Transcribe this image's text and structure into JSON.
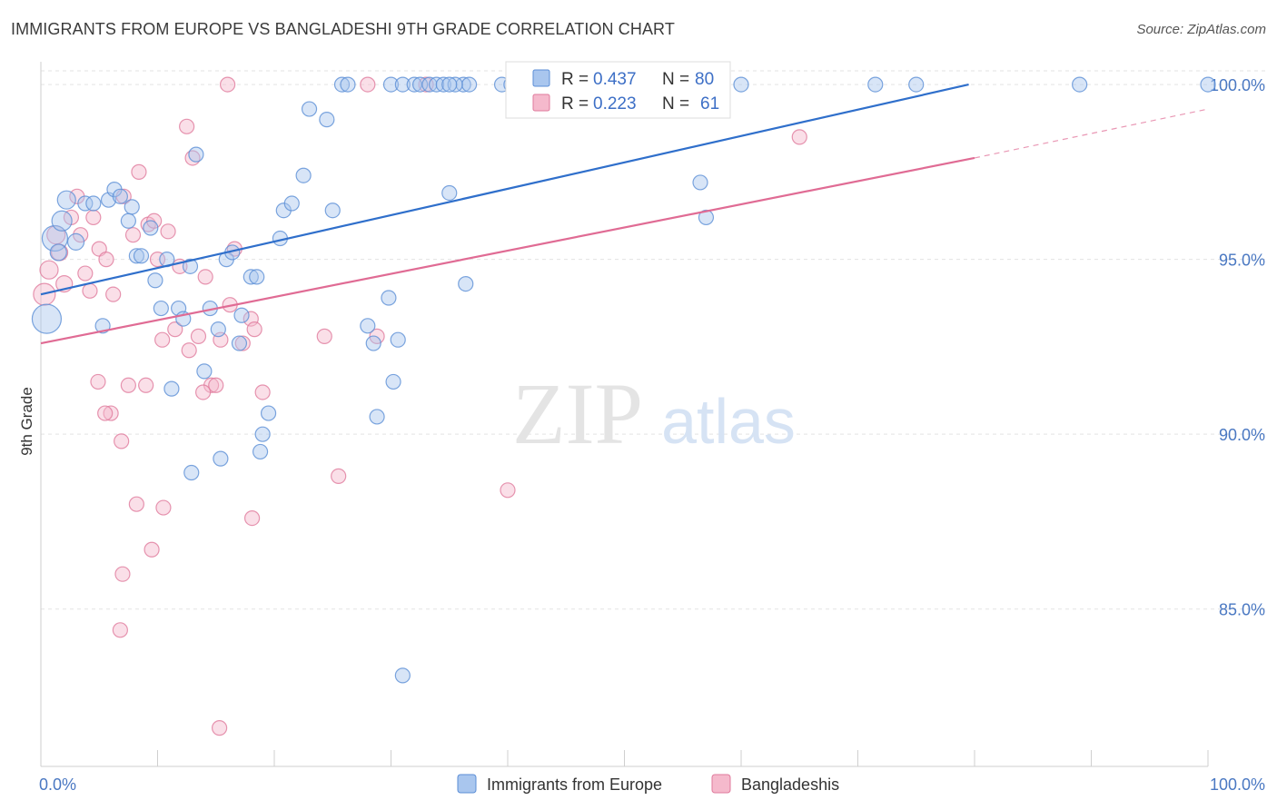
{
  "title": "IMMIGRANTS FROM EUROPE VS BANGLADESHI 9TH GRADE CORRELATION CHART",
  "source": "Source: ZipAtlas.com",
  "watermark": {
    "zip": "ZIP",
    "atlas": "atlas"
  },
  "colors": {
    "blue_fill": "#a9c6ee",
    "blue_stroke": "#5b8ed6",
    "blue_line": "#2f6fcb",
    "pink_fill": "#f5b9cc",
    "pink_stroke": "#e07a9c",
    "pink_line": "#e06b94",
    "grid": "#e3e3e3",
    "axis_text": "#4a78c2"
  },
  "stats": {
    "blue": {
      "r_key": "R =",
      "r_val": "0.437",
      "n_key": "N =",
      "n_val": "80"
    },
    "pink": {
      "r_key": "R =",
      "r_val": "0.223",
      "n_key": "N =",
      "n_val": "61"
    }
  },
  "chart_data": {
    "type": "scatter",
    "xlabel": "",
    "ylabel": "9th Grade",
    "xlim": [
      0,
      100
    ],
    "ylim": [
      80.5,
      100.6
    ],
    "x_tick_labels": [
      "0.0%",
      "100.0%"
    ],
    "y_ticks": [
      85,
      90,
      95,
      100
    ],
    "y_tick_labels": [
      "85.0%",
      "90.0%",
      "95.0%",
      "100.0%"
    ],
    "grid": true,
    "legend": [
      {
        "name": "Immigrants from Europe",
        "color": "blue"
      },
      {
        "name": "Bangladeshis",
        "color": "pink"
      }
    ],
    "series": [
      {
        "name": "Immigrants from Europe",
        "color": "blue",
        "trend": {
          "x": [
            0,
            79.5
          ],
          "y": [
            94.0,
            100.0
          ],
          "dash_to": null
        },
        "points": [
          [
            0.5,
            93.3,
            16
          ],
          [
            1.2,
            95.6,
            14
          ],
          [
            1.8,
            96.1,
            11
          ],
          [
            2.2,
            96.7,
            10
          ],
          [
            3.0,
            95.5,
            9
          ],
          [
            1.5,
            95.2,
            9
          ],
          [
            3.8,
            96.6,
            8
          ],
          [
            4.5,
            96.6,
            8
          ],
          [
            5.8,
            96.7,
            8
          ],
          [
            6.3,
            97.0,
            8
          ],
          [
            6.8,
            96.8,
            8
          ],
          [
            7.5,
            96.1,
            8
          ],
          [
            7.8,
            96.5,
            8
          ],
          [
            5.3,
            93.1,
            8
          ],
          [
            8.2,
            95.1,
            8
          ],
          [
            8.6,
            95.1,
            8
          ],
          [
            9.4,
            95.9,
            8
          ],
          [
            9.8,
            94.4,
            8
          ],
          [
            10.3,
            93.6,
            8
          ],
          [
            10.8,
            95.0,
            8
          ],
          [
            11.2,
            91.3,
            8
          ],
          [
            11.8,
            93.6,
            8
          ],
          [
            12.2,
            93.3,
            8
          ],
          [
            12.8,
            94.8,
            8
          ],
          [
            13.3,
            98.0,
            8
          ],
          [
            14.0,
            91.8,
            8
          ],
          [
            14.5,
            93.6,
            8
          ],
          [
            15.2,
            93.0,
            8
          ],
          [
            15.9,
            95.0,
            8
          ],
          [
            16.4,
            95.2,
            8
          ],
          [
            17.0,
            92.6,
            8
          ],
          [
            17.2,
            93.4,
            8
          ],
          [
            18.0,
            94.5,
            8
          ],
          [
            18.5,
            94.5,
            8
          ],
          [
            19.0,
            90.0,
            8
          ],
          [
            19.5,
            90.6,
            8
          ],
          [
            20.5,
            95.6,
            8
          ],
          [
            20.8,
            96.4,
            8
          ],
          [
            21.5,
            96.6,
            8
          ],
          [
            22.5,
            97.4,
            8
          ],
          [
            23.0,
            99.3,
            8
          ],
          [
            24.5,
            99.0,
            8
          ],
          [
            25.0,
            96.4,
            8
          ],
          [
            25.8,
            100.0,
            8
          ],
          [
            26.3,
            100.0,
            8
          ],
          [
            28.0,
            93.1,
            8
          ],
          [
            28.5,
            92.6,
            8
          ],
          [
            28.8,
            90.5,
            8
          ],
          [
            29.8,
            93.9,
            8
          ],
          [
            30.2,
            91.5,
            8
          ],
          [
            30.6,
            92.7,
            8
          ],
          [
            30.0,
            100.0,
            8
          ],
          [
            31.0,
            100.0,
            8
          ],
          [
            32.0,
            100.0,
            8
          ],
          [
            32.5,
            100.0,
            8
          ],
          [
            33.3,
            100.0,
            8
          ],
          [
            33.9,
            100.0,
            8
          ],
          [
            34.5,
            100.0,
            8
          ],
          [
            35.0,
            96.9,
            8
          ],
          [
            36.2,
            100.0,
            8
          ],
          [
            36.7,
            100.0,
            8
          ],
          [
            35.5,
            100.0,
            8
          ],
          [
            35.0,
            100.0,
            8
          ],
          [
            36.4,
            94.3,
            8
          ],
          [
            39.5,
            100.0,
            8
          ],
          [
            40.3,
            100.0,
            8
          ],
          [
            46.0,
            100.0,
            8
          ],
          [
            47.0,
            100.0,
            8
          ],
          [
            48.5,
            100.0,
            8
          ],
          [
            51.5,
            100.0,
            8
          ],
          [
            56.5,
            97.2,
            8
          ],
          [
            57.0,
            96.2,
            8
          ],
          [
            60.0,
            100.0,
            8
          ],
          [
            71.5,
            100.0,
            8
          ],
          [
            75.0,
            100.0,
            8
          ],
          [
            89.0,
            100.0,
            8
          ],
          [
            100.0,
            100.0,
            8
          ],
          [
            12.9,
            88.9,
            8
          ],
          [
            15.4,
            89.3,
            8
          ],
          [
            18.8,
            89.5,
            8
          ],
          [
            31.0,
            83.1,
            8
          ]
        ]
      },
      {
        "name": "Bangladeshis",
        "color": "pink",
        "trend": {
          "x": [
            0,
            80.0
          ],
          "y": [
            92.6,
            97.9
          ],
          "dash_to": [
            100.0,
            99.3
          ]
        },
        "points": [
          [
            0.3,
            94.0,
            12
          ],
          [
            0.7,
            94.7,
            10
          ],
          [
            1.3,
            95.7,
            10
          ],
          [
            1.6,
            95.2,
            9
          ],
          [
            2.0,
            94.3,
            9
          ],
          [
            2.6,
            96.2,
            8
          ],
          [
            3.1,
            96.8,
            8
          ],
          [
            3.4,
            95.7,
            8
          ],
          [
            3.8,
            94.6,
            8
          ],
          [
            4.2,
            94.1,
            8
          ],
          [
            4.5,
            96.2,
            8
          ],
          [
            5.0,
            95.3,
            8
          ],
          [
            5.6,
            95.0,
            8
          ],
          [
            6.2,
            94.0,
            8
          ],
          [
            6.9,
            89.8,
            8
          ],
          [
            7.1,
            96.8,
            8
          ],
          [
            7.9,
            95.7,
            8
          ],
          [
            8.4,
            97.5,
            8
          ],
          [
            9.2,
            96.0,
            8
          ],
          [
            9.7,
            96.1,
            8
          ],
          [
            10.0,
            95.0,
            8
          ],
          [
            10.4,
            92.7,
            8
          ],
          [
            10.9,
            95.8,
            8
          ],
          [
            11.5,
            93.0,
            8
          ],
          [
            11.9,
            94.8,
            8
          ],
          [
            12.5,
            98.8,
            8
          ],
          [
            13.0,
            97.9,
            8
          ],
          [
            13.5,
            92.8,
            8
          ],
          [
            14.1,
            94.5,
            8
          ],
          [
            14.6,
            91.4,
            8
          ],
          [
            15.4,
            92.7,
            8
          ],
          [
            16.2,
            93.7,
            8
          ],
          [
            16.6,
            95.3,
            8
          ],
          [
            17.3,
            92.6,
            8
          ],
          [
            18.0,
            93.3,
            8
          ],
          [
            18.3,
            93.0,
            8
          ],
          [
            19.0,
            91.2,
            8
          ],
          [
            4.9,
            91.5,
            8
          ],
          [
            6.0,
            90.6,
            8
          ],
          [
            7.5,
            91.4,
            8
          ],
          [
            8.2,
            88.0,
            8
          ],
          [
            9.0,
            91.4,
            8
          ],
          [
            10.5,
            87.9,
            8
          ],
          [
            12.7,
            92.4,
            8
          ],
          [
            13.9,
            91.2,
            8
          ],
          [
            15.0,
            91.4,
            8
          ],
          [
            5.5,
            90.6,
            8
          ],
          [
            7.0,
            86.0,
            8
          ],
          [
            9.5,
            86.7,
            8
          ],
          [
            6.8,
            84.4,
            8
          ],
          [
            15.3,
            81.6,
            8
          ],
          [
            18.1,
            87.6,
            8
          ],
          [
            24.3,
            92.8,
            8
          ],
          [
            25.5,
            88.8,
            8
          ],
          [
            28.0,
            100.0,
            8
          ],
          [
            33.0,
            100.0,
            8
          ],
          [
            40.0,
            88.4,
            8
          ],
          [
            40.5,
            100.0,
            8
          ],
          [
            65.0,
            98.5,
            8
          ],
          [
            16.0,
            100.0,
            8
          ],
          [
            28.8,
            92.8,
            8
          ]
        ]
      }
    ]
  }
}
